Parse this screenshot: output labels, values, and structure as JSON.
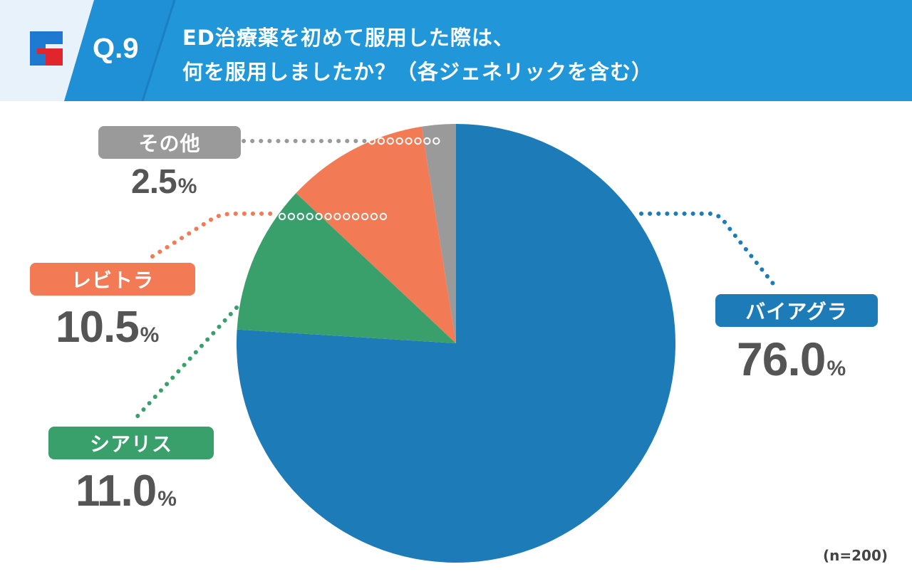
{
  "header": {
    "question_number": "Q.9",
    "title_line1": "ED治療薬を初めて服用した際は、",
    "title_line2": "何を服用しましたか？（各ジェネリックを含む）",
    "logo_icon": "f-logo-icon",
    "band_color": "#1f8fd6",
    "light_color": "#e8f2fb",
    "logo_blue": "#1e7ad1",
    "logo_red": "#e0262c"
  },
  "chart_data": {
    "type": "pie",
    "start_angle_deg": 0,
    "direction": "clockwise",
    "sample_size": "(n=200)",
    "slices": [
      {
        "label": "バイアグラ",
        "value": 76.0,
        "display": "76.0",
        "unit": "%",
        "color": "#1d7bb8"
      },
      {
        "label": "シアリス",
        "value": 11.0,
        "display": "11.0",
        "unit": "%",
        "color": "#39a06c"
      },
      {
        "label": "レビトラ",
        "value": 10.5,
        "display": "10.5",
        "unit": "%",
        "color": "#f27a55"
      },
      {
        "label": "その他",
        "value": 2.5,
        "display": "2.5",
        "unit": "%",
        "color": "#9a9a9a"
      }
    ]
  }
}
